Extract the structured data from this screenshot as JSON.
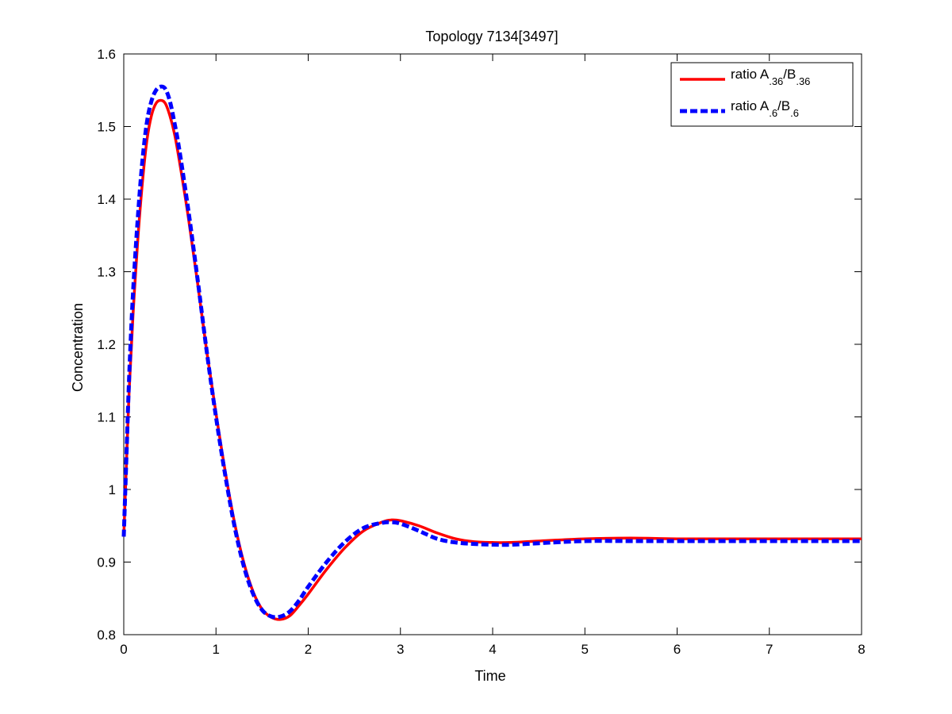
{
  "chart_data": {
    "type": "line",
    "title": "Topology 7134[3497]",
    "xlabel": "Time",
    "ylabel": "Concentration",
    "xlim": [
      0,
      8
    ],
    "ylim": [
      0.8,
      1.6
    ],
    "xticks": [
      0,
      1,
      2,
      3,
      4,
      5,
      6,
      7,
      8
    ],
    "xtick_labels": [
      "0",
      "1",
      "2",
      "3",
      "4",
      "5",
      "6",
      "7",
      "8"
    ],
    "yticks": [
      0.8,
      0.9,
      1.0,
      1.1,
      1.2,
      1.3,
      1.4,
      1.5,
      1.6
    ],
    "ytick_labels": [
      "0.8",
      "0.9",
      "1",
      "1.1",
      "1.2",
      "1.3",
      "1.4",
      "1.5",
      "1.6"
    ],
    "grid": false,
    "legend_position": "top-right",
    "series": [
      {
        "name": "ratio A.36/B.36",
        "legend": {
          "prefix": "ratio A",
          "sub1": ".36",
          "mid": "/B",
          "sub2": ".36"
        },
        "color": "#ff0000",
        "style": "solid",
        "x": [
          0,
          0.03,
          0.06,
          0.1,
          0.15,
          0.2,
          0.25,
          0.3,
          0.35,
          0.4,
          0.45,
          0.5,
          0.55,
          0.6,
          0.7,
          0.8,
          0.9,
          1.0,
          1.1,
          1.2,
          1.3,
          1.4,
          1.5,
          1.6,
          1.7,
          1.8,
          1.9,
          2.0,
          2.2,
          2.4,
          2.6,
          2.8,
          2.9,
          3.0,
          3.2,
          3.4,
          3.6,
          3.8,
          4.0,
          4.2,
          4.5,
          5.0,
          5.5,
          6.0,
          6.5,
          7.0,
          7.5,
          8.0
        ],
        "y": [
          0.935,
          1.04,
          1.14,
          1.24,
          1.34,
          1.42,
          1.48,
          1.515,
          1.532,
          1.536,
          1.532,
          1.515,
          1.49,
          1.455,
          1.375,
          1.285,
          1.19,
          1.105,
          1.025,
          0.955,
          0.9,
          0.86,
          0.835,
          0.824,
          0.821,
          0.826,
          0.84,
          0.856,
          0.89,
          0.92,
          0.943,
          0.955,
          0.958,
          0.957,
          0.95,
          0.94,
          0.932,
          0.928,
          0.927,
          0.927,
          0.929,
          0.932,
          0.933,
          0.932,
          0.932,
          0.932,
          0.932,
          0.932
        ]
      },
      {
        "name": "ratio A.6/B.6",
        "legend": {
          "prefix": "ratio A",
          "sub1": ".6",
          "mid": "/B",
          "sub2": ".6"
        },
        "color": "#0000ff",
        "style": "dashed",
        "x": [
          0,
          0.03,
          0.06,
          0.1,
          0.15,
          0.2,
          0.25,
          0.3,
          0.35,
          0.4,
          0.45,
          0.5,
          0.55,
          0.6,
          0.7,
          0.8,
          0.9,
          1.0,
          1.1,
          1.2,
          1.3,
          1.4,
          1.5,
          1.6,
          1.7,
          1.8,
          1.9,
          2.0,
          2.2,
          2.4,
          2.6,
          2.8,
          2.9,
          3.0,
          3.2,
          3.4,
          3.6,
          3.8,
          4.0,
          4.2,
          4.5,
          5.0,
          5.5,
          6.0,
          6.5,
          7.0,
          7.5,
          8.0
        ],
        "y": [
          0.935,
          1.05,
          1.16,
          1.27,
          1.37,
          1.45,
          1.505,
          1.535,
          1.55,
          1.555,
          1.552,
          1.535,
          1.505,
          1.47,
          1.385,
          1.29,
          1.19,
          1.1,
          1.02,
          0.95,
          0.895,
          0.857,
          0.834,
          0.825,
          0.825,
          0.832,
          0.847,
          0.866,
          0.9,
          0.928,
          0.947,
          0.954,
          0.955,
          0.953,
          0.943,
          0.932,
          0.927,
          0.925,
          0.924,
          0.924,
          0.926,
          0.929,
          0.929,
          0.929,
          0.929,
          0.929,
          0.929,
          0.929
        ]
      }
    ]
  }
}
